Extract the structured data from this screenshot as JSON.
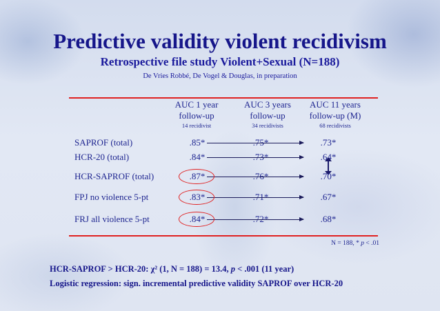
{
  "slide": {
    "title": "Predictive validity violent recidivism",
    "subtitle": "Retrospective file study Violent+Sexual (N=188)",
    "authors": "De Vries Robbé, De Vogel & Douglas, in preparation"
  },
  "table": {
    "columns": [
      {
        "line1": "AUC 1 year",
        "line2": "follow-up",
        "note": "14 recidivist"
      },
      {
        "line1": "AUC 3 years",
        "line2": "follow-up",
        "note": "34 recidivists"
      },
      {
        "line1": "AUC 11 years",
        "line2": "follow-up (M)",
        "note": "68 recidivists"
      }
    ],
    "rows": [
      {
        "label": "SAPROF (total)",
        "values": [
          ".85*",
          ".75*",
          ".73*"
        ]
      },
      {
        "label": "HCR-20 (total)",
        "values": [
          ".84*",
          ".73*",
          ".64*"
        ]
      },
      {
        "label": "HCR-SAPROF (total)",
        "values": [
          ".87*",
          ".76*",
          ".70*"
        ]
      },
      {
        "label": "FPJ no violence 5-pt",
        "values": [
          ".83*",
          ".71*",
          ".67*"
        ]
      },
      {
        "label": "FRJ all violence 5-pt",
        "values": [
          ".84*",
          ".72*",
          ".68*"
        ]
      }
    ],
    "footnote_prefix": "N = 188, * ",
    "footnote_p": "p",
    "footnote_suffix": " < .01"
  },
  "bottom": {
    "line1_a": "HCR-SAPROF > HCR-20: χ² (1, N = 188) = 13.4, ",
    "line1_p": "p",
    "line1_b": " < .001 (11 year)",
    "line2": "Logistic regression: sign. incremental predictive validity SAPROF over HCR-20"
  },
  "colors": {
    "title": "#16168a",
    "text": "#1e2590",
    "accent_red": "#e02020"
  }
}
